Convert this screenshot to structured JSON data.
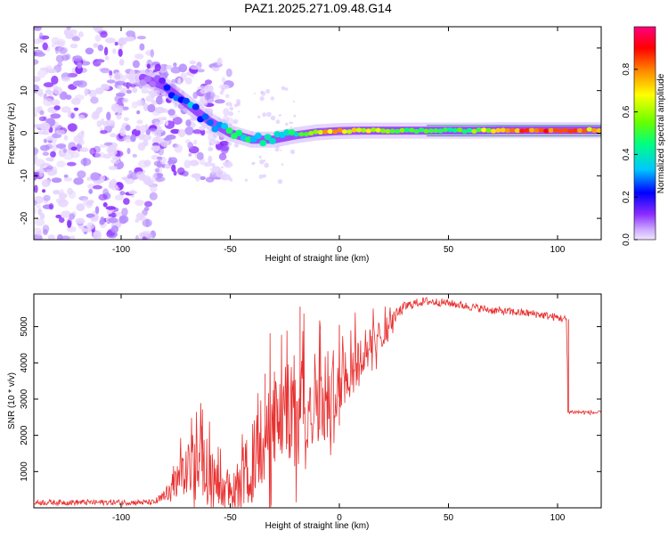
{
  "title": "PAZ1.2025.271.09.48.G14",
  "colors": {
    "snr_line": "#e83030",
    "frame": "#000000",
    "spectrogram_bg": "#ffffff"
  },
  "chart_data": [
    {
      "type": "heatmap",
      "name": "spectrogram",
      "xlabel": "Height of straight line (km)",
      "ylabel": "Frequency (Hz)",
      "xlim": [
        -140,
        120
      ],
      "ylim": [
        -25,
        25
      ],
      "xticks": [
        -100,
        -50,
        0,
        50,
        100
      ],
      "yticks": [
        -20,
        -10,
        0,
        10,
        20
      ],
      "colorbar": {
        "label": "Normalized spectral amplitude",
        "range": [
          0.0,
          1.0
        ],
        "ticks": [
          "0.0",
          "0.2",
          "0.4",
          "0.6",
          "0.8"
        ],
        "colormap": [
          "#f2e6ff",
          "#c9a6ff",
          "#8a2bff",
          "#0000ff",
          "#00c8ff",
          "#00ff80",
          "#66ff00",
          "#ffff00",
          "#ff8000",
          "#ff0000",
          "#ff0080"
        ]
      },
      "signal_track": [
        {
          "x": -90,
          "f": 13.0,
          "a": 0.15
        },
        {
          "x": -80,
          "f": 11.0,
          "a": 0.25
        },
        {
          "x": -70,
          "f": 7.0,
          "a": 0.35
        },
        {
          "x": -60,
          "f": 3.0,
          "a": 0.4
        },
        {
          "x": -50,
          "f": 0.0,
          "a": 0.45
        },
        {
          "x": -40,
          "f": -1.5,
          "a": 0.45
        },
        {
          "x": -30,
          "f": -1.5,
          "a": 0.45
        },
        {
          "x": -20,
          "f": -0.5,
          "a": 0.5
        },
        {
          "x": -10,
          "f": 0.2,
          "a": 0.7
        },
        {
          "x": 0,
          "f": 0.5,
          "a": 0.75
        },
        {
          "x": 10,
          "f": 0.6,
          "a": 0.7
        },
        {
          "x": 30,
          "f": 0.6,
          "a": 0.55
        },
        {
          "x": 60,
          "f": 0.6,
          "a": 0.55
        },
        {
          "x": 80,
          "f": 0.7,
          "a": 0.8
        },
        {
          "x": 100,
          "f": 0.7,
          "a": 0.85
        },
        {
          "x": 120,
          "f": 0.7,
          "a": 0.7
        }
      ]
    },
    {
      "type": "line",
      "name": "snr",
      "xlabel": "Height of straight line (km)",
      "ylabel": "SNR (10 * v/v)",
      "xlim": [
        -140,
        120
      ],
      "ylim": [
        0,
        5900
      ],
      "xticks": [
        -100,
        -50,
        0,
        50,
        100
      ],
      "yticks": [
        1000,
        2000,
        3000,
        4000,
        5000
      ],
      "series": [
        {
          "name": "SNR",
          "x": [
            -140,
            -120,
            -100,
            -85,
            -80,
            -75,
            -70,
            -65,
            -60,
            -55,
            -50,
            -45,
            -40,
            -35,
            -30,
            -25,
            -20,
            -15,
            -10,
            -5,
            0,
            5,
            10,
            15,
            20,
            25,
            30,
            35,
            40,
            50,
            60,
            70,
            80,
            90,
            100,
            104,
            105,
            110,
            120
          ],
          "y": [
            150,
            150,
            150,
            150,
            300,
            650,
            1000,
            1350,
            1050,
            600,
            450,
            750,
            1200,
            1800,
            2300,
            2600,
            2800,
            2950,
            3100,
            3300,
            3550,
            3800,
            4150,
            4500,
            4850,
            5250,
            5550,
            5650,
            5700,
            5650,
            5550,
            5450,
            5400,
            5350,
            5250,
            5200,
            2650,
            2650,
            2600
          ],
          "noise": [
            80,
            80,
            80,
            80,
            200,
            500,
            700,
            800,
            700,
            500,
            500,
            800,
            1100,
            1300,
            1300,
            1300,
            1500,
            1400,
            1300,
            1200,
            900,
            800,
            650,
            500,
            400,
            200,
            150,
            120,
            120,
            110,
            110,
            110,
            110,
            110,
            110,
            110,
            60,
            60,
            60
          ]
        }
      ],
      "spikes": [
        {
          "x": -63,
          "y": 2250
        },
        {
          "x": -34,
          "y": 3700
        },
        {
          "x": -18,
          "y": 5550
        },
        {
          "x": -9,
          "y": 4800
        },
        {
          "x": 0,
          "y": 5050
        }
      ]
    }
  ]
}
